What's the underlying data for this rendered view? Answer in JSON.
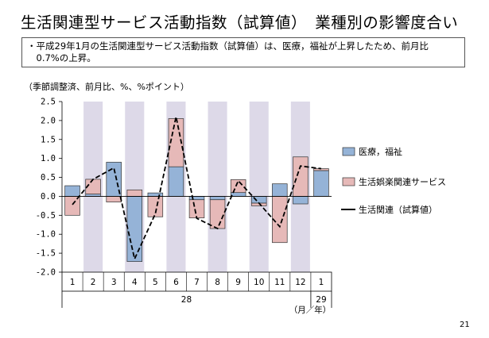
{
  "title": "生活関連型サービス活動指数（試算値）　業種別の影響度合い",
  "note": {
    "line1": "・平成29年1月の生活関連型サービス活動指数（試算値）は、医療，福祉が上昇したため、前月比",
    "line2": "　0.7%の上昇。"
  },
  "unit_label": "（季節調整済、前月比、%、%ポイント）",
  "page_number": "21",
  "chart_data": {
    "type": "bar",
    "stacked": true,
    "categories": [
      "1",
      "2",
      "3",
      "4",
      "5",
      "6",
      "7",
      "8",
      "9",
      "10",
      "11",
      "12",
      "1"
    ],
    "year_labels": [
      {
        "text": "28",
        "spans": [
          "1",
          "12"
        ]
      },
      {
        "text": "29",
        "spans": [
          "1",
          "1"
        ]
      }
    ],
    "x_unit_label": "（月／年）",
    "ylim": [
      -2.0,
      2.5
    ],
    "yticks": [
      "2.5",
      "2.0",
      "1.5",
      "1.0",
      "0.5",
      "0.0",
      "-0.5",
      "-1.0",
      "-1.5",
      "-2.0"
    ],
    "ytick_values": [
      2.5,
      2.0,
      1.5,
      1.0,
      0.5,
      0.0,
      -0.5,
      -1.0,
      -1.5,
      -2.0
    ],
    "shaded_columns": [
      2,
      4,
      6,
      8,
      10,
      12
    ],
    "series": [
      {
        "name": "医療，福祉",
        "kind": "bar",
        "color": "#95b3d7",
        "values": [
          0.28,
          0.06,
          0.9,
          -1.72,
          0.09,
          0.78,
          -0.09,
          -0.09,
          0.1,
          -0.18,
          0.33,
          -0.2,
          0.68
        ]
      },
      {
        "name": "生活娯楽関連サービス",
        "kind": "bar",
        "color": "#e6b9b8",
        "values": [
          -0.5,
          0.39,
          -0.15,
          0.17,
          -0.54,
          1.27,
          -0.48,
          -0.76,
          0.34,
          -0.07,
          -1.22,
          1.04,
          0.05
        ]
      },
      {
        "name": "生活関連（試算値）",
        "kind": "line",
        "color": "#000000",
        "dashed": true,
        "values": [
          -0.22,
          0.45,
          0.75,
          -1.65,
          -0.46,
          2.1,
          -0.58,
          -0.85,
          0.41,
          -0.18,
          -0.8,
          0.8,
          0.73
        ]
      }
    ],
    "legend_position": "right",
    "grid": false
  }
}
